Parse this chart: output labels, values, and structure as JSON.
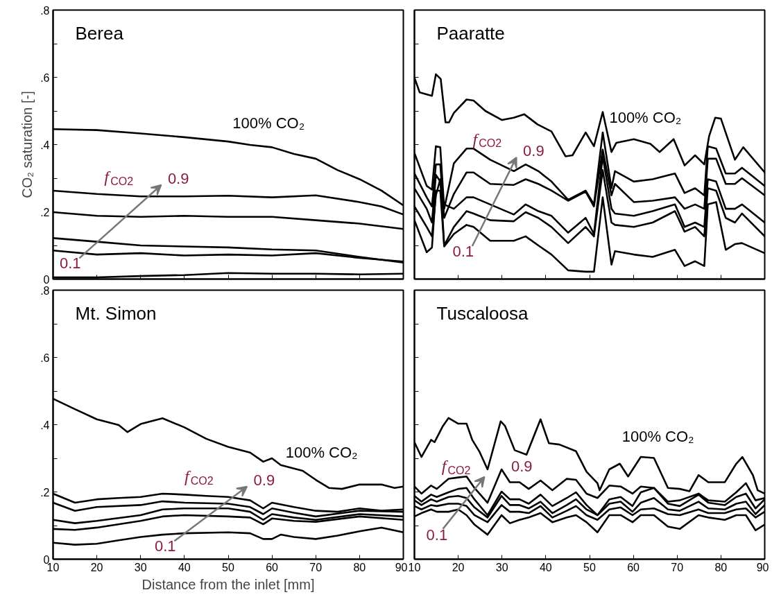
{
  "chart_data": [
    {
      "type": "line",
      "title": "Berea",
      "ylabel": "CO₂ saturation [-]",
      "xlim": [
        10,
        90
      ],
      "ylim": [
        0,
        0.8
      ],
      "xticks": [
        10,
        20,
        30,
        40,
        50,
        60,
        70,
        80,
        90
      ],
      "yticks": [
        {
          "value": 0,
          "label": "0"
        },
        {
          "value": 0.1,
          "label": null
        },
        {
          "value": 0.2,
          "label": ".2"
        },
        {
          "value": 0.3,
          "label": null
        },
        {
          "value": 0.4,
          "label": ".4"
        },
        {
          "value": 0.5,
          "label": null
        },
        {
          "value": 0.6,
          "label": ".6"
        },
        {
          "value": 0.7,
          "label": null
        },
        {
          "value": 0.8,
          "label": ".8"
        }
      ],
      "tick_labels": "y",
      "marker": "none",
      "line_style": "solid",
      "x": [
        10,
        20,
        30,
        40,
        50,
        60,
        70,
        80,
        90
      ],
      "annotations": [
        "100% CO₂",
        "f$_{CO2}$",
        "0.9",
        "0.1"
      ],
      "series": [
        {
          "color": "#000000",
          "x": [
            10,
            20,
            30,
            40,
            50,
            55,
            60,
            65,
            70,
            75,
            80,
            85,
            90
          ],
          "values": [
            0.446,
            0.443,
            0.433,
            0.422,
            0.409,
            0.399,
            0.392,
            0.372,
            0.358,
            0.324,
            0.297,
            0.263,
            0.219
          ]
        },
        {
          "color": "#000000",
          "x": [
            10,
            20,
            30,
            40,
            50,
            60,
            70,
            80,
            85,
            90
          ],
          "values": [
            0.263,
            0.253,
            0.246,
            0.246,
            0.248,
            0.243,
            0.249,
            0.229,
            0.216,
            0.192
          ]
        },
        {
          "color": "#000000",
          "values": [
            0.199,
            0.188,
            0.185,
            0.188,
            0.185,
            0.185,
            0.175,
            0.165,
            0.149
          ]
        },
        {
          "color": "#000000",
          "values": [
            0.122,
            0.111,
            0.1,
            0.097,
            0.094,
            0.088,
            0.085,
            0.066,
            0.049
          ]
        },
        {
          "color": "#000000",
          "values": [
            0.085,
            0.073,
            0.077,
            0.07,
            0.073,
            0.07,
            0.077,
            0.063,
            0.052
          ]
        },
        {
          "color": "#000000",
          "values": [
            0.005,
            0.005,
            0.009,
            0.012,
            0.018,
            0.016,
            0.016,
            0.014,
            0.016
          ]
        }
      ]
    },
    {
      "type": "line",
      "title": "Paaratte",
      "xlim": [
        10,
        90
      ],
      "ylim": [
        0,
        0.8
      ],
      "xticks": [
        10,
        20,
        30,
        40,
        50,
        60,
        70,
        80,
        90
      ],
      "yticks": [
        0,
        0.1,
        0.2,
        0.3,
        0.4,
        0.5,
        0.6,
        0.7,
        0.8
      ],
      "tick_labels": false,
      "marker": "none",
      "line_style": "solid",
      "x": [
        10,
        12.8,
        14,
        14.9,
        15.9,
        16.8,
        19,
        21.9,
        23.5,
        27.3,
        32.7,
        35.4,
        38.3,
        41.3,
        45.1,
        49.1,
        51,
        53,
        55,
        55.8,
        60.1,
        64.4,
        69.5,
        71.7,
        74.1,
        76.2,
        77,
        78.9,
        81.1,
        83.2,
        84.8,
        90
      ],
      "annotations": [
        "100% CO₂",
        "f$_{CO2}$",
        "0.9",
        "0.1"
      ],
      "series": [
        {
          "color": "#000000",
          "x": [
            10,
            11.2,
            14,
            14.9,
            16,
            17.1,
            17.9,
            19,
            21.9,
            23.5,
            26.2,
            30,
            32.7,
            35.1,
            38.1,
            41.3,
            44.5,
            46.1,
            49.1,
            51,
            53,
            55,
            56.1,
            60.1,
            63.9,
            66,
            69.2,
            71.7,
            74.1,
            76.2,
            77.3,
            78.7,
            80,
            83.2,
            85.1,
            90
          ],
          "values": [
            0.599,
            0.555,
            0.545,
            0.609,
            0.595,
            0.466,
            0.466,
            0.494,
            0.534,
            0.531,
            0.5,
            0.473,
            0.48,
            0.49,
            0.46,
            0.439,
            0.365,
            0.368,
            0.436,
            0.395,
            0.497,
            0.378,
            0.405,
            0.416,
            0.402,
            0.378,
            0.416,
            0.338,
            0.368,
            0.341,
            0.425,
            0.48,
            0.477,
            0.355,
            0.392,
            0.317
          ]
        },
        {
          "color": "#000000",
          "values": [
            0.375,
            0.277,
            0.266,
            0.395,
            0.392,
            0.209,
            0.344,
            0.388,
            0.388,
            0.355,
            0.321,
            0.341,
            0.321,
            0.29,
            0.236,
            0.263,
            0.222,
            0.436,
            0.27,
            0.321,
            0.29,
            0.297,
            0.314,
            0.256,
            0.27,
            0.249,
            0.395,
            0.388,
            0.314,
            0.314,
            0.331,
            0.277
          ]
        },
        {
          "color": "#000000",
          "values": [
            0.314,
            0.243,
            0.216,
            0.341,
            0.341,
            0.182,
            0.253,
            0.317,
            0.317,
            0.283,
            0.28,
            0.297,
            0.283,
            0.263,
            0.233,
            0.26,
            0.216,
            0.385,
            0.249,
            0.283,
            0.229,
            0.233,
            0.243,
            0.209,
            0.222,
            0.209,
            0.358,
            0.358,
            0.283,
            0.283,
            0.3,
            0.249
          ]
        },
        {
          "color": "#000000",
          "values": [
            0.27,
            0.209,
            0.168,
            0.31,
            0.29,
            0.222,
            0.209,
            0.243,
            0.243,
            0.222,
            0.192,
            0.222,
            0.202,
            0.188,
            0.138,
            0.182,
            0.134,
            0.365,
            0.209,
            0.195,
            0.188,
            0.202,
            0.222,
            0.155,
            0.168,
            0.155,
            0.297,
            0.29,
            0.209,
            0.209,
            0.222,
            0.168
          ]
        },
        {
          "color": "#000000",
          "values": [
            0.216,
            0.155,
            0.127,
            0.249,
            0.297,
            0.1,
            0.155,
            0.202,
            0.195,
            0.175,
            0.172,
            0.199,
            0.182,
            0.155,
            0.107,
            0.155,
            0.127,
            0.324,
            0.168,
            0.161,
            0.155,
            0.168,
            0.202,
            0.141,
            0.155,
            0.127,
            0.27,
            0.263,
            0.182,
            0.168,
            0.195,
            0.127
          ]
        },
        {
          "color": "#000000",
          "values": [
            0.175,
            0.08,
            0.094,
            0.263,
            0.263,
            0.097,
            0.134,
            0.161,
            0.155,
            0.114,
            0.114,
            0.127,
            0.1,
            0.073,
            0.026,
            0.022,
            0.022,
            0.243,
            0.043,
            0.083,
            0.073,
            0.066,
            0.087,
            0.039,
            0.053,
            0.039,
            0.222,
            0.229,
            0.087,
            0.104,
            0.107,
            0.077
          ]
        }
      ]
    },
    {
      "type": "line",
      "title": "Mt. Simon",
      "xlabel": "Distance from the inlet [mm]",
      "xlim": [
        10,
        90
      ],
      "ylim": [
        0,
        0.8
      ],
      "xticks": [
        10,
        20,
        30,
        40,
        50,
        60,
        70,
        80,
        90
      ],
      "yticks": [
        {
          "value": 0,
          "label": "0"
        },
        {
          "value": 0.1,
          "label": null
        },
        {
          "value": 0.2,
          "label": ".2"
        },
        {
          "value": 0.3,
          "label": null
        },
        {
          "value": 0.4,
          "label": ".4"
        },
        {
          "value": 0.5,
          "label": null
        },
        {
          "value": 0.6,
          "label": ".6"
        },
        {
          "value": 0.7,
          "label": null
        },
        {
          "value": 0.8,
          "label": ".8"
        }
      ],
      "marker": "none",
      "line_style": "solid",
      "x": [
        10,
        15,
        20,
        30,
        35,
        40,
        50,
        55,
        58,
        60,
        65,
        70,
        80,
        90
      ],
      "annotations": [
        "100% CO₂",
        "f$_{CO2}$",
        "0.9",
        "0.1"
      ],
      "series": [
        {
          "color": "#000000",
          "x": [
            10,
            15,
            20,
            25,
            27,
            30,
            35,
            40,
            45,
            50,
            55,
            58,
            60,
            62,
            67,
            70,
            73,
            76,
            80,
            85,
            88,
            90
          ],
          "values": [
            0.477,
            0.446,
            0.416,
            0.399,
            0.378,
            0.402,
            0.419,
            0.392,
            0.358,
            0.334,
            0.317,
            0.29,
            0.3,
            0.28,
            0.263,
            0.236,
            0.212,
            0.209,
            0.222,
            0.222,
            0.212,
            0.216
          ]
        },
        {
          "color": "#000000",
          "x": [
            10,
            15,
            20,
            25,
            30,
            35,
            40,
            45,
            50,
            55,
            58,
            60,
            65,
            70,
            75,
            80,
            85,
            90
          ],
          "values": [
            0.195,
            0.168,
            0.178,
            0.182,
            0.185,
            0.195,
            0.192,
            0.188,
            0.185,
            0.175,
            0.151,
            0.168,
            0.155,
            0.144,
            0.141,
            0.151,
            0.144,
            0.148
          ]
        },
        {
          "color": "#000000",
          "values": [
            0.168,
            0.144,
            0.155,
            0.161,
            0.172,
            0.168,
            0.165,
            0.155,
            0.134,
            0.151,
            0.138,
            0.127,
            0.144,
            0.141
          ]
        },
        {
          "color": "#000000",
          "values": [
            0.117,
            0.107,
            0.114,
            0.131,
            0.148,
            0.151,
            0.151,
            0.141,
            0.117,
            0.134,
            0.124,
            0.117,
            0.134,
            0.127
          ]
        },
        {
          "color": "#000000",
          "values": [
            0.09,
            0.087,
            0.094,
            0.114,
            0.127,
            0.131,
            0.127,
            0.124,
            0.104,
            0.121,
            0.114,
            0.111,
            0.127,
            0.117
          ]
        },
        {
          "color": "#000000",
          "x": [
            10,
            15,
            20,
            25,
            30,
            35,
            40,
            50,
            55,
            58,
            60,
            62,
            65,
            70,
            75,
            80,
            85,
            90
          ],
          "values": [
            0.049,
            0.043,
            0.046,
            0.056,
            0.066,
            0.073,
            0.077,
            0.08,
            0.077,
            0.06,
            0.06,
            0.073,
            0.066,
            0.06,
            0.07,
            0.083,
            0.094,
            0.08
          ]
        }
      ]
    },
    {
      "type": "line",
      "title": "Tuscaloosa",
      "xlim": [
        10,
        90
      ],
      "ylim": [
        0,
        0.8
      ],
      "xticks": [
        10,
        20,
        30,
        40,
        50,
        60,
        70,
        80,
        90
      ],
      "yticks": [
        0,
        0.1,
        0.2,
        0.3,
        0.4,
        0.5,
        0.6,
        0.7,
        0.8
      ],
      "tick_labels": "x",
      "marker": "none",
      "line_style": "solid",
      "x": [
        10,
        11.6,
        13.8,
        15.1,
        17.8,
        20,
        21.9,
        23.7,
        26.7,
        29.9,
        31.8,
        34,
        36.1,
        38.8,
        41.5,
        44.8,
        46.9,
        49.3,
        51.8,
        54.5,
        57.1,
        59.8,
        61.7,
        64.7,
        67.9,
        70.6,
        74.9,
        77.1,
        80.9,
        83.5,
        85.7,
        87.9,
        90
      ],
      "annotations": [
        "100% CO₂",
        "f$_{CO2}$",
        "0.9",
        "0.1"
      ],
      "series": [
        {
          "color": "#000000",
          "x": [
            10,
            11.6,
            13.8,
            14.6,
            16.5,
            17.8,
            20,
            21.9,
            23.2,
            24.8,
            26.7,
            29.7,
            30.7,
            32.9,
            35.6,
            38.8,
            40.7,
            43.1,
            46.9,
            49.3,
            51.8,
            52.3,
            54.5,
            56.9,
            58.8,
            61.7,
            64.7,
            67.9,
            70.6,
            72.8,
            74.9,
            77.1,
            80.9,
            83.5,
            84.9,
            87.3,
            88.4,
            90
          ],
          "values": [
            0.348,
            0.304,
            0.355,
            0.348,
            0.396,
            0.42,
            0.403,
            0.403,
            0.355,
            0.321,
            0.267,
            0.41,
            0.396,
            0.324,
            0.311,
            0.416,
            0.345,
            0.341,
            0.321,
            0.26,
            0.226,
            0.205,
            0.267,
            0.284,
            0.246,
            0.304,
            0.301,
            0.212,
            0.209,
            0.202,
            0.25,
            0.229,
            0.229,
            0.284,
            0.304,
            0.25,
            0.205,
            0.195
          ]
        },
        {
          "color": "#000000",
          "values": [
            0.216,
            0.195,
            0.219,
            0.209,
            0.239,
            0.243,
            0.246,
            0.212,
            0.168,
            0.267,
            0.229,
            0.229,
            0.209,
            0.234,
            0.205,
            0.239,
            0.236,
            0.195,
            0.182,
            0.219,
            0.216,
            0.195,
            0.216,
            0.212,
            0.171,
            0.175,
            0.195,
            0.175,
            0.171,
            0.199,
            0.226,
            0.175,
            0.182
          ]
        },
        {
          "color": "#000000",
          "values": [
            0.188,
            0.171,
            0.192,
            0.185,
            0.199,
            0.209,
            0.212,
            0.178,
            0.131,
            0.201,
            0.178,
            0.178,
            0.165,
            0.192,
            0.158,
            0.182,
            0.199,
            0.161,
            0.131,
            0.178,
            0.185,
            0.158,
            0.199,
            0.212,
            0.165,
            0.158,
            0.192,
            0.168,
            0.161,
            0.185,
            0.195,
            0.151,
            0.178
          ]
        },
        {
          "color": "#000000",
          "values": [
            0.175,
            0.161,
            0.178,
            0.171,
            0.185,
            0.188,
            0.182,
            0.154,
            0.124,
            0.188,
            0.161,
            0.161,
            0.151,
            0.171,
            0.137,
            0.161,
            0.178,
            0.148,
            0.131,
            0.165,
            0.171,
            0.141,
            0.168,
            0.182,
            0.148,
            0.144,
            0.171,
            0.151,
            0.148,
            0.165,
            0.171,
            0.134,
            0.161
          ]
        },
        {
          "color": "#000000",
          "values": [
            0.158,
            0.148,
            0.161,
            0.158,
            0.165,
            0.165,
            0.158,
            0.131,
            0.11,
            0.161,
            0.141,
            0.141,
            0.137,
            0.158,
            0.124,
            0.144,
            0.158,
            0.131,
            0.117,
            0.148,
            0.154,
            0.131,
            0.148,
            0.151,
            0.134,
            0.131,
            0.148,
            0.137,
            0.137,
            0.148,
            0.151,
            0.124,
            0.141
          ]
        },
        {
          "color": "#000000",
          "values": [
            0.127,
            0.137,
            0.148,
            0.141,
            0.141,
            0.148,
            0.131,
            0.103,
            0.073,
            0.131,
            0.107,
            0.117,
            0.124,
            0.137,
            0.11,
            0.124,
            0.131,
            0.11,
            0.08,
            0.131,
            0.131,
            0.11,
            0.131,
            0.131,
            0.097,
            0.09,
            0.131,
            0.124,
            0.117,
            0.131,
            0.131,
            0.086,
            0.103
          ]
        }
      ]
    }
  ]
}
